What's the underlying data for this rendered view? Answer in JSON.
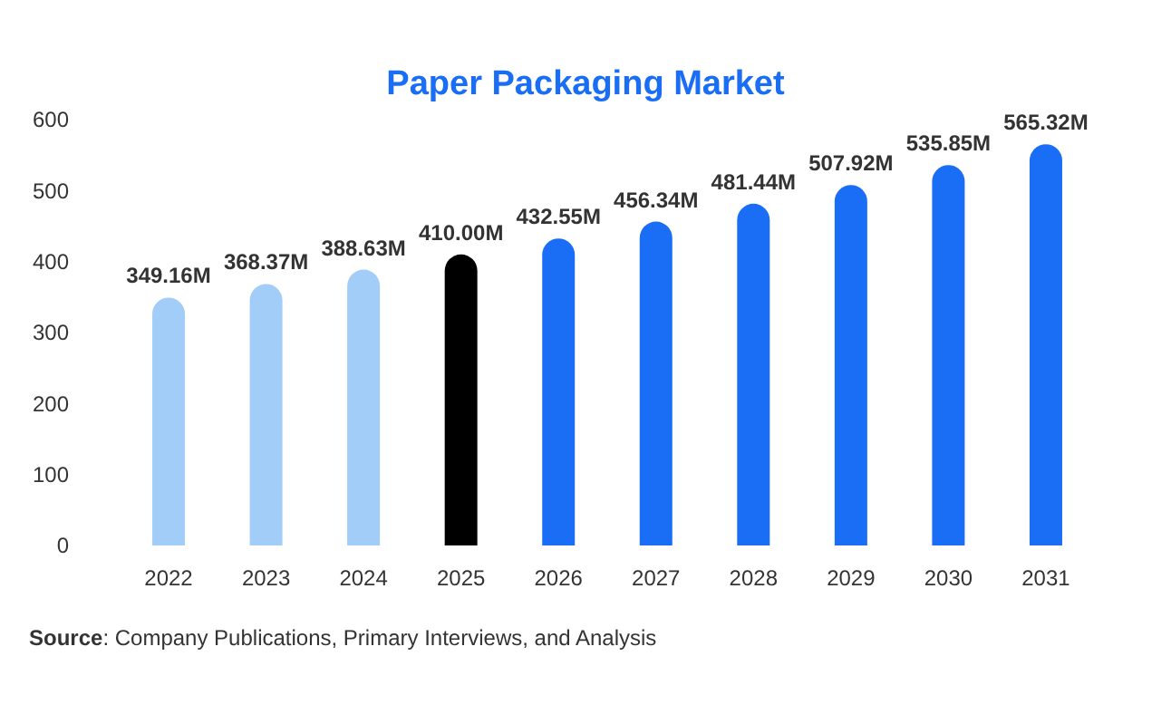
{
  "chart_data": {
    "type": "bar",
    "title": "Paper Packaging Market",
    "categories": [
      "2022",
      "2023",
      "2024",
      "2025",
      "2026",
      "2027",
      "2028",
      "2029",
      "2030",
      "2031"
    ],
    "values": [
      349.16,
      368.37,
      388.63,
      410.0,
      432.55,
      456.34,
      481.44,
      507.92,
      535.85,
      565.32
    ],
    "value_labels": [
      "349.16M",
      "368.37M",
      "388.63M",
      "410.00M",
      "432.55M",
      "456.34M",
      "481.44M",
      "507.92M",
      "535.85M",
      "565.32M"
    ],
    "colors": [
      "#a3cdf9",
      "#a3cdf9",
      "#a3cdf9",
      "#000000",
      "#1a6ef5",
      "#1a6ef5",
      "#1a6ef5",
      "#1a6ef5",
      "#1a6ef5",
      "#1a6ef5"
    ],
    "ylim": [
      0,
      600
    ],
    "yticks": [
      0,
      100,
      200,
      300,
      400,
      500,
      600
    ],
    "grid": false,
    "annotations": [
      "Source: Company Publications, Primary Interviews, and Analysis"
    ]
  }
}
